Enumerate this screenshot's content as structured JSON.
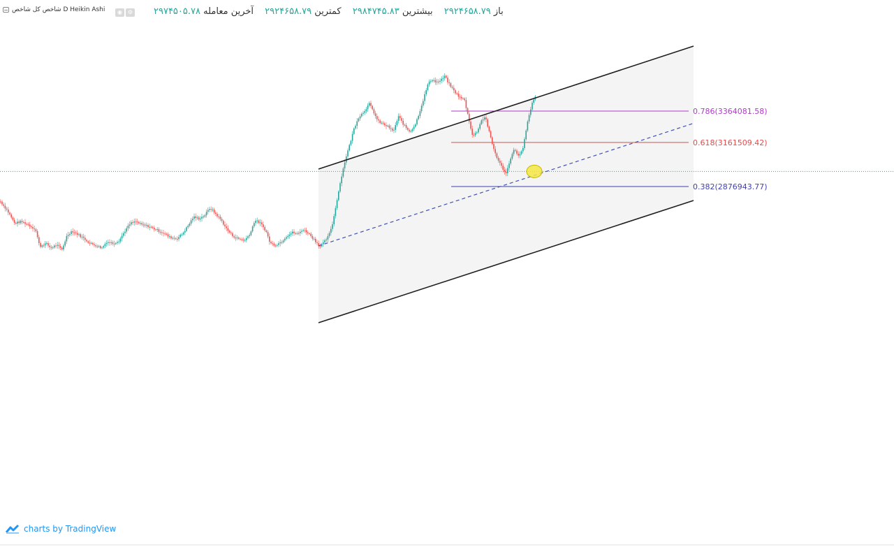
{
  "header": {
    "legend_text": "شاخص کل شاخص D Heikin Ashi",
    "ohlc": [
      {
        "label": "باز",
        "value": "۲۹۲۴۶۵۸.۷۹"
      },
      {
        "label": "بیشترین",
        "value": "۲۹۸۴۷۴۵.۸۳"
      },
      {
        "label": "کمترین",
        "value": "۲۹۲۴۶۵۸.۷۹"
      },
      {
        "label": "آخرین معامله",
        "value": "۲۹۷۴۵۰۵.۷۸"
      }
    ]
  },
  "chart_data": {
    "type": "line",
    "chart_style": "heikin-ashi candlestick",
    "colors": {
      "up": "#26a69a",
      "down": "#ef5350",
      "channel": "#1f1f1f",
      "median": "#3f51b5",
      "price_line": "#26a69a",
      "fill": "#f4f4f4",
      "highlight": "#f5e642"
    },
    "price_path": [
      [
        0,
        2780000
      ],
      [
        10,
        2720000
      ],
      [
        20,
        2640000
      ],
      [
        30,
        2650000
      ],
      [
        40,
        2630000
      ],
      [
        50,
        2600000
      ],
      [
        56,
        2490000
      ],
      [
        65,
        2510000
      ],
      [
        72,
        2480000
      ],
      [
        80,
        2500000
      ],
      [
        88,
        2470000
      ],
      [
        95,
        2560000
      ],
      [
        102,
        2590000
      ],
      [
        110,
        2570000
      ],
      [
        120,
        2540000
      ],
      [
        128,
        2510000
      ],
      [
        135,
        2500000
      ],
      [
        145,
        2480000
      ],
      [
        152,
        2520000
      ],
      [
        162,
        2510000
      ],
      [
        170,
        2530000
      ],
      [
        178,
        2590000
      ],
      [
        186,
        2640000
      ],
      [
        194,
        2650000
      ],
      [
        202,
        2630000
      ],
      [
        212,
        2620000
      ],
      [
        222,
        2600000
      ],
      [
        232,
        2580000
      ],
      [
        242,
        2550000
      ],
      [
        252,
        2540000
      ],
      [
        260,
        2570000
      ],
      [
        268,
        2620000
      ],
      [
        276,
        2680000
      ],
      [
        284,
        2670000
      ],
      [
        292,
        2690000
      ],
      [
        300,
        2740000
      ],
      [
        308,
        2700000
      ],
      [
        316,
        2660000
      ],
      [
        324,
        2600000
      ],
      [
        332,
        2560000
      ],
      [
        340,
        2540000
      ],
      [
        350,
        2530000
      ],
      [
        358,
        2580000
      ],
      [
        364,
        2660000
      ],
      [
        372,
        2640000
      ],
      [
        380,
        2590000
      ],
      [
        386,
        2510000
      ],
      [
        394,
        2500000
      ],
      [
        402,
        2520000
      ],
      [
        410,
        2560000
      ],
      [
        418,
        2580000
      ],
      [
        426,
        2570000
      ],
      [
        432,
        2600000
      ],
      [
        440,
        2580000
      ],
      [
        450,
        2530000
      ],
      [
        457,
        2490000
      ],
      [
        462,
        2510000
      ],
      [
        470,
        2560000
      ],
      [
        476,
        2650000
      ],
      [
        482,
        2800000
      ],
      [
        488,
        2940000
      ],
      [
        494,
        3060000
      ],
      [
        500,
        3150000
      ],
      [
        506,
        3250000
      ],
      [
        512,
        3320000
      ],
      [
        520,
        3360000
      ],
      [
        528,
        3410000
      ],
      [
        534,
        3360000
      ],
      [
        540,
        3300000
      ],
      [
        548,
        3280000
      ],
      [
        556,
        3260000
      ],
      [
        562,
        3230000
      ],
      [
        570,
        3330000
      ],
      [
        578,
        3270000
      ],
      [
        586,
        3230000
      ],
      [
        594,
        3280000
      ],
      [
        600,
        3360000
      ],
      [
        606,
        3450000
      ],
      [
        612,
        3540000
      ],
      [
        618,
        3570000
      ],
      [
        624,
        3550000
      ],
      [
        630,
        3560000
      ],
      [
        636,
        3590000
      ],
      [
        642,
        3540000
      ],
      [
        650,
        3490000
      ],
      [
        658,
        3450000
      ],
      [
        664,
        3440000
      ],
      [
        670,
        3320000
      ],
      [
        676,
        3200000
      ],
      [
        682,
        3230000
      ],
      [
        688,
        3300000
      ],
      [
        694,
        3330000
      ],
      [
        700,
        3220000
      ],
      [
        706,
        3120000
      ],
      [
        712,
        3050000
      ],
      [
        718,
        3000000
      ],
      [
        724,
        2960000
      ],
      [
        730,
        3060000
      ],
      [
        736,
        3120000
      ],
      [
        742,
        3070000
      ],
      [
        748,
        3120000
      ],
      [
        754,
        3280000
      ],
      [
        760,
        3400000
      ],
      [
        766,
        3460000
      ]
    ],
    "fib_levels": [
      {
        "ratio": "0.786",
        "value": "3364081.58",
        "label": "0.786(3364081.58)",
        "color": "#b039c8"
      },
      {
        "ratio": "0.618",
        "value": "3161509.42",
        "label": "0.618(3161509.42)",
        "color": "#e24b4b"
      },
      {
        "ratio": "0.382",
        "value": "2876943.77",
        "label": "0.382(2876943.77)",
        "color": "#3f3fb0"
      }
    ],
    "current_price": 2974505.78,
    "grid": false,
    "legend": "top-left"
  },
  "watermark": {
    "text": "charts by TradingView"
  }
}
